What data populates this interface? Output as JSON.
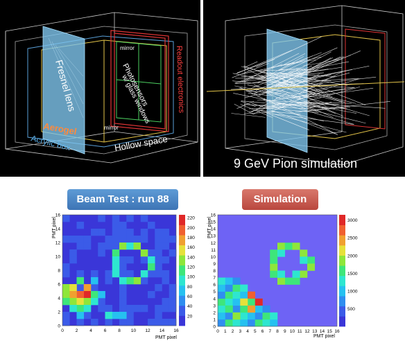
{
  "top_left": {
    "labels": {
      "fresnel": "Fresnel lens",
      "aerogel": "Aerogel",
      "acrylic": "Acrylic box",
      "mirror_top": "mirror",
      "mirror_bottom": "mirror",
      "photosensors": "Photosensors",
      "glass": "w/ glass windows",
      "readout": "Readout electronics",
      "hollow": "Hollow space"
    }
  },
  "top_right": {
    "caption": "9 GeV Pion simulation"
  },
  "beam_test": {
    "tag": "Beam Test : run 88",
    "y_axis_label": "PMT pixel",
    "x_axis_label": "PMT pixel",
    "x_ticks": [
      "0",
      "2",
      "4",
      "6",
      "8",
      "10",
      "12",
      "14",
      "16"
    ],
    "y_ticks": [
      "0",
      "2",
      "4",
      "6",
      "8",
      "10",
      "12",
      "14",
      "16"
    ],
    "colorbar_ticks": [
      "20",
      "40",
      "60",
      "80",
      "100",
      "120",
      "140",
      "160",
      "180",
      "200",
      "220"
    ]
  },
  "simulation": {
    "tag": "Simulation",
    "y_axis_label": "PMT pixel",
    "x_axis_label": "PMT pixel",
    "x_ticks": [
      "0",
      "1",
      "2",
      "3",
      "4",
      "5",
      "6",
      "7",
      "8",
      "9",
      "10",
      "11",
      "12",
      "13",
      "14",
      "15",
      "16"
    ],
    "y_ticks": [
      "0",
      "1",
      "2",
      "3",
      "4",
      "5",
      "6",
      "7",
      "8",
      "9",
      "10",
      "11",
      "12",
      "13",
      "14",
      "15",
      "16"
    ],
    "colorbar_ticks": [
      "500",
      "1000",
      "1500",
      "2000",
      "2500",
      "3000"
    ]
  }
}
